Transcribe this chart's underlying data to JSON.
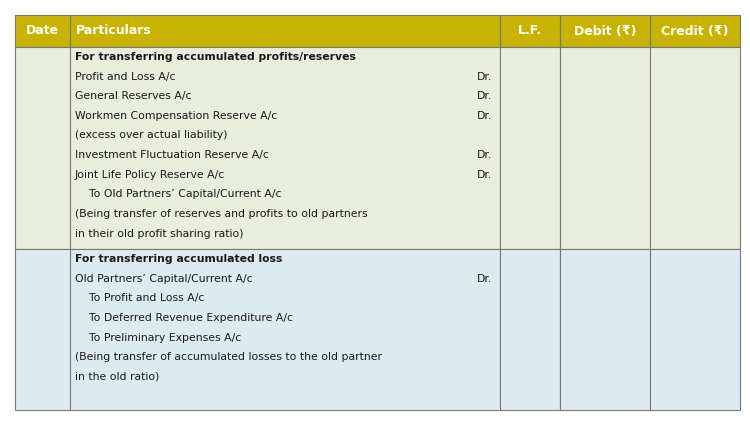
{
  "header": [
    "Date",
    "Particulars",
    "L.F.",
    "Debit (₹)",
    "Credit (₹)"
  ],
  "header_bg": "#c8b400",
  "header_text_color": "#ffffff",
  "row1_bg": "#e8eddc",
  "row2_bg": "#dceaf2",
  "border_color": "#777777",
  "text_color": "#1a1a1a",
  "figsize": [
    7.5,
    4.24
  ],
  "dpi": 100,
  "section1_lines": [
    {
      "text": "For transferring accumulated profits/reserves",
      "bold": true,
      "dr": false
    },
    {
      "text": "Profit and Loss A/c",
      "bold": false,
      "dr": true
    },
    {
      "text": "General Reserves A/c",
      "bold": false,
      "dr": true
    },
    {
      "text": "Workmen Compensation Reserve A/c",
      "bold": false,
      "dr": true
    },
    {
      "text": "(excess over actual liability)",
      "bold": false,
      "dr": false
    },
    {
      "text": "Investment Fluctuation Reserve A/c",
      "bold": false,
      "dr": true
    },
    {
      "text": "Joint Life Policy Reserve A/c",
      "bold": false,
      "dr": true
    },
    {
      "text": "    To Old Partners’ Capital/Current A/c",
      "bold": false,
      "dr": false
    },
    {
      "text": "(Being transfer of reserves and profits to old partners",
      "bold": false,
      "dr": false
    },
    {
      "text": "in their old profit sharing ratio)",
      "bold": false,
      "dr": false
    }
  ],
  "section2_lines": [
    {
      "text": "For transferring accumulated loss",
      "bold": true,
      "dr": false
    },
    {
      "text": "Old Partners’ Capital/Current A/c",
      "bold": false,
      "dr": true
    },
    {
      "text": "    To Profit and Loss A/c",
      "bold": false,
      "dr": false
    },
    {
      "text": "    To Deferred Revenue Expenditure A/c",
      "bold": false,
      "dr": false
    },
    {
      "text": "    To Preliminary Expenses A/c",
      "bold": false,
      "dr": false
    },
    {
      "text": "(Being transfer of accumulated losses to the old partner",
      "bold": false,
      "dr": false
    },
    {
      "text": "in the old ratio)",
      "bold": false,
      "dr": false
    }
  ]
}
